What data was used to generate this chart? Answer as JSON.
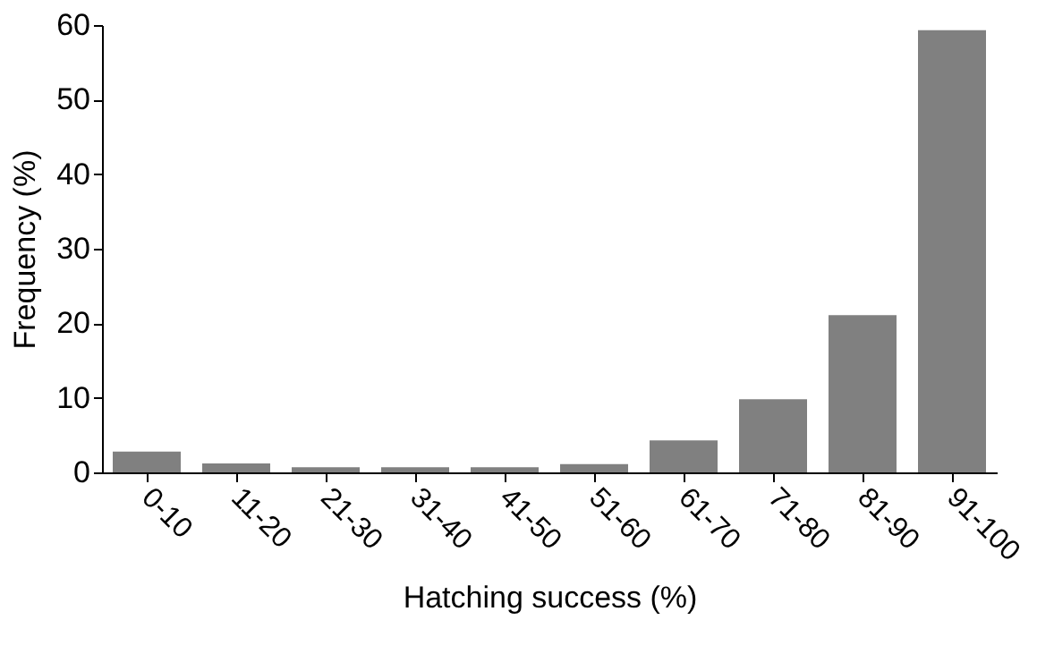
{
  "chart_data": {
    "type": "bar",
    "xlabel": "Hatching success (%)",
    "ylabel": "Frequency (%)",
    "categories": [
      "0-10",
      "11-20",
      "21-30",
      "31-40",
      "41-50",
      "51-60",
      "61-70",
      "71-80",
      "81-90",
      "91-100"
    ],
    "values": [
      2.8,
      1.2,
      0.7,
      0.7,
      0.7,
      1.1,
      4.3,
      9.8,
      21.1,
      59.3
    ],
    "color": "#808080",
    "ylim": [
      0,
      60
    ],
    "yticks": [
      0,
      10,
      20,
      30,
      40,
      50,
      60
    ],
    "grid": false
  }
}
